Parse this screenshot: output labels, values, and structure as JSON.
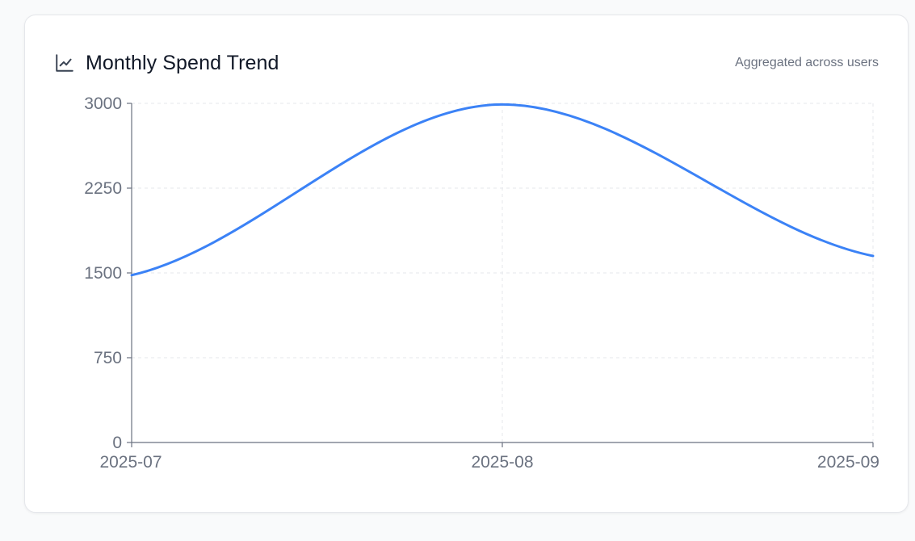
{
  "card": {
    "title": "Monthly Spend Trend",
    "subtitle": "Aggregated across users",
    "icon": "line-chart-icon"
  },
  "colors": {
    "line": "#3b82f6",
    "axis": "#6b7280",
    "grid": "#e5e7eb",
    "text": "#6b7280"
  },
  "chart_data": {
    "type": "line",
    "x": [
      "2025-07",
      "2025-08",
      "2025-09"
    ],
    "series": [
      {
        "values": [
          1480,
          2990,
          1650
        ]
      }
    ],
    "yticks": [
      0,
      750,
      1500,
      2250,
      3000
    ],
    "ylim": [
      0,
      3000
    ],
    "grid": true,
    "curve": "smooth"
  }
}
